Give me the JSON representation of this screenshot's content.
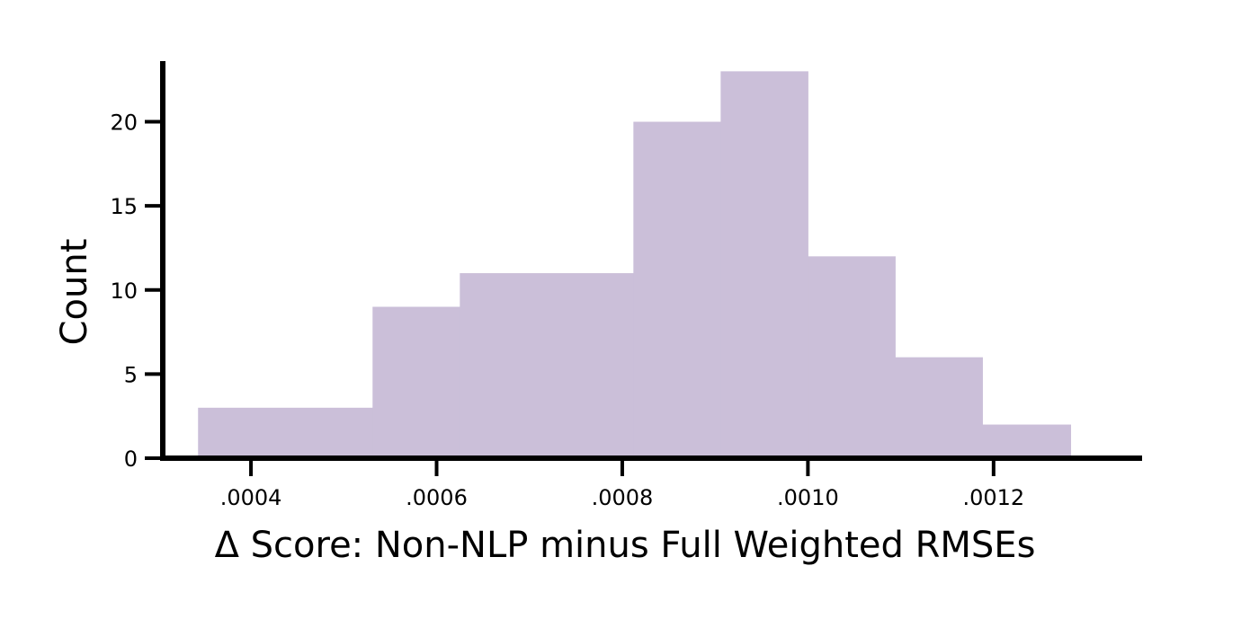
{
  "chart_data": {
    "type": "bar",
    "title": "",
    "xlabel": "Δ Score: Non-NLP minus Full Weighted RMSEs",
    "ylabel": "Count",
    "xlim": [
      0.000305,
      0.00136
    ],
    "ylim": [
      0,
      23.5
    ],
    "xticks": [
      {
        "value": 0.0004,
        "label": ".0004"
      },
      {
        "value": 0.0006,
        "label": ".0006"
      },
      {
        "value": 0.0008,
        "label": ".0008"
      },
      {
        "value": 0.001,
        "label": ".0010"
      },
      {
        "value": 0.0012,
        "label": ".0012"
      }
    ],
    "yticks": [
      {
        "value": 0,
        "label": "0"
      },
      {
        "value": 5,
        "label": "5"
      },
      {
        "value": 10,
        "label": "10"
      },
      {
        "value": 15,
        "label": "15"
      },
      {
        "value": 20,
        "label": "20"
      }
    ],
    "bins": [
      {
        "start": 0.000343,
        "end": 0.000531,
        "count": 3
      },
      {
        "start": 0.000531,
        "end": 0.000625,
        "count": 9
      },
      {
        "start": 0.000625,
        "end": 0.000812,
        "count": 11
      },
      {
        "start": 0.000812,
        "end": 0.000906,
        "count": 20
      },
      {
        "start": 0.000906,
        "end": 0.001,
        "count": 23
      },
      {
        "start": 0.001,
        "end": 0.001094,
        "count": 12
      },
      {
        "start": 0.001094,
        "end": 0.001188,
        "count": 6
      },
      {
        "start": 0.001188,
        "end": 0.001283,
        "count": 2
      }
    ],
    "bar_color": "#cbbfd9",
    "axis_color": "#000000",
    "grid": false,
    "legend": "none"
  }
}
